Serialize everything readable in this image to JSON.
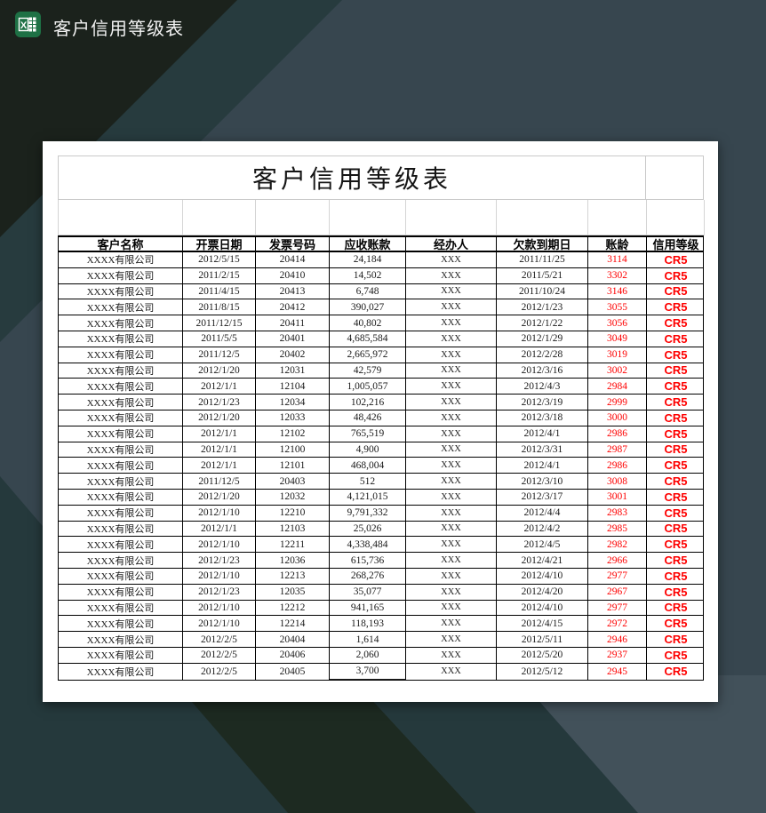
{
  "window": {
    "title": "客户信用等级表",
    "icon": "excel-icon"
  },
  "sheet": {
    "title": "客户信用等级表",
    "columns": [
      "客户名称",
      "开票日期",
      "发票号码",
      "应收账款",
      "经办人",
      "欠款到期日",
      "账龄",
      "信用等级"
    ],
    "rows": [
      [
        "XXXX有限公司",
        "2012/5/15",
        "20414",
        "24,184",
        "XXX",
        "2011/11/25",
        "3114",
        "CR5"
      ],
      [
        "XXXX有限公司",
        "2011/2/15",
        "20410",
        "14,502",
        "XXX",
        "2011/5/21",
        "3302",
        "CR5"
      ],
      [
        "XXXX有限公司",
        "2011/4/15",
        "20413",
        "6,748",
        "XXX",
        "2011/10/24",
        "3146",
        "CR5"
      ],
      [
        "XXXX有限公司",
        "2011/8/15",
        "20412",
        "390,027",
        "XXX",
        "2012/1/23",
        "3055",
        "CR5"
      ],
      [
        "XXXX有限公司",
        "2011/12/15",
        "20411",
        "40,802",
        "XXX",
        "2012/1/22",
        "3056",
        "CR5"
      ],
      [
        "XXXX有限公司",
        "2011/5/5",
        "20401",
        "4,685,584",
        "XXX",
        "2012/1/29",
        "3049",
        "CR5"
      ],
      [
        "XXXX有限公司",
        "2011/12/5",
        "20402",
        "2,665,972",
        "XXX",
        "2012/2/28",
        "3019",
        "CR5"
      ],
      [
        "XXXX有限公司",
        "2012/1/20",
        "12031",
        "42,579",
        "XXX",
        "2012/3/16",
        "3002",
        "CR5"
      ],
      [
        "XXXX有限公司",
        "2012/1/1",
        "12104",
        "1,005,057",
        "XXX",
        "2012/4/3",
        "2984",
        "CR5"
      ],
      [
        "XXXX有限公司",
        "2012/1/23",
        "12034",
        "102,216",
        "XXX",
        "2012/3/19",
        "2999",
        "CR5"
      ],
      [
        "XXXX有限公司",
        "2012/1/20",
        "12033",
        "48,426",
        "XXX",
        "2012/3/18",
        "3000",
        "CR5"
      ],
      [
        "XXXX有限公司",
        "2012/1/1",
        "12102",
        "765,519",
        "XXX",
        "2012/4/1",
        "2986",
        "CR5"
      ],
      [
        "XXXX有限公司",
        "2012/1/1",
        "12100",
        "4,900",
        "XXX",
        "2012/3/31",
        "2987",
        "CR5"
      ],
      [
        "XXXX有限公司",
        "2012/1/1",
        "12101",
        "468,004",
        "XXX",
        "2012/4/1",
        "2986",
        "CR5"
      ],
      [
        "XXXX有限公司",
        "2011/12/5",
        "20403",
        "512",
        "XXX",
        "2012/3/10",
        "3008",
        "CR5"
      ],
      [
        "XXXX有限公司",
        "2012/1/20",
        "12032",
        "4,121,015",
        "XXX",
        "2012/3/17",
        "3001",
        "CR5"
      ],
      [
        "XXXX有限公司",
        "2012/1/10",
        "12210",
        "9,791,332",
        "XXX",
        "2012/4/4",
        "2983",
        "CR5"
      ],
      [
        "XXXX有限公司",
        "2012/1/1",
        "12103",
        "25,026",
        "XXX",
        "2012/4/2",
        "2985",
        "CR5"
      ],
      [
        "XXXX有限公司",
        "2012/1/10",
        "12211",
        "4,338,484",
        "XXX",
        "2012/4/5",
        "2982",
        "CR5"
      ],
      [
        "XXXX有限公司",
        "2012/1/23",
        "12036",
        "615,736",
        "XXX",
        "2012/4/21",
        "2966",
        "CR5"
      ],
      [
        "XXXX有限公司",
        "2012/1/10",
        "12213",
        "268,276",
        "XXX",
        "2012/4/10",
        "2977",
        "CR5"
      ],
      [
        "XXXX有限公司",
        "2012/1/23",
        "12035",
        "35,077",
        "XXX",
        "2012/4/20",
        "2967",
        "CR5"
      ],
      [
        "XXXX有限公司",
        "2012/1/10",
        "12212",
        "941,165",
        "XXX",
        "2012/4/10",
        "2977",
        "CR5"
      ],
      [
        "XXXX有限公司",
        "2012/1/10",
        "12214",
        "118,193",
        "XXX",
        "2012/4/15",
        "2972",
        "CR5"
      ],
      [
        "XXXX有限公司",
        "2012/2/5",
        "20404",
        "1,614",
        "XXX",
        "2012/5/11",
        "2946",
        "CR5"
      ],
      [
        "XXXX有限公司",
        "2012/2/5",
        "20406",
        "2,060",
        "XXX",
        "2012/5/20",
        "2937",
        "CR5"
      ],
      [
        "XXXX有限公司",
        "2012/2/5",
        "20405",
        "3,700",
        "XXX",
        "2012/5/12",
        "2945",
        "CR5"
      ]
    ]
  },
  "colors": {
    "credit_red": "#fe0000",
    "excel_green": "#1e7145",
    "bg_slate": "#37464f",
    "bg_teal": "#25393c",
    "bg_dark": "#1b221c"
  }
}
